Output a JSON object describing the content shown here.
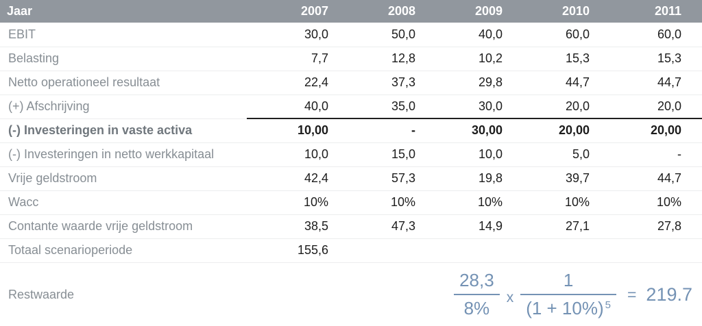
{
  "header": {
    "label": "Jaar",
    "years": [
      "2007",
      "2008",
      "2009",
      "2010",
      "2011"
    ]
  },
  "rows": [
    {
      "label": "EBIT",
      "values": [
        "30,0",
        "50,0",
        "40,0",
        "60,0",
        "60,0"
      ]
    },
    {
      "label": "Belasting",
      "values": [
        "7,7",
        "12,8",
        "10,2",
        "15,3",
        "15,3"
      ]
    },
    {
      "label": "Netto operationeel resultaat",
      "values": [
        "22,4",
        "37,3",
        "29,8",
        "44,7",
        "44,7"
      ]
    },
    {
      "label": "(+) Afschrijving",
      "values": [
        "40,0",
        "35,0",
        "30,0",
        "20,0",
        "20,0"
      ]
    },
    {
      "label": "(-) Investeringen in vaste activa",
      "values": [
        "10,00",
        "-",
        "30,00",
        "20,00",
        "20,00"
      ],
      "bold": true
    },
    {
      "label": "(-) Investeringen in netto werkkapitaal",
      "values": [
        "10,0",
        "15,0",
        "10,0",
        "5,0",
        "-"
      ]
    },
    {
      "label": "Vrije geldstroom",
      "values": [
        "42,4",
        "57,3",
        "19,8",
        "39,7",
        "44,7"
      ]
    },
    {
      "label": "Wacc",
      "values": [
        "10%",
        "10%",
        "10%",
        "10%",
        "10%"
      ]
    },
    {
      "label": "Contante waarde vrije geldstroom",
      "values": [
        "38,5",
        "47,3",
        "14,9",
        "27,1",
        "27,8"
      ]
    },
    {
      "label": "Totaal scenarioperiode",
      "values": [
        "155,6",
        "",
        "",
        "",
        ""
      ]
    }
  ],
  "restwaarde": {
    "label": "Restwaarde",
    "formula": {
      "numerator1": "28,3",
      "denominator1": "8%",
      "operator": "x",
      "numerator2": "1",
      "denominator2": "(1 + 10%)",
      "exponent": "5",
      "equals": "=",
      "result": "219.7"
    }
  },
  "colors": {
    "header_bg": "#91979E",
    "header_text": "#FFFFFF",
    "label_text": "#878E94",
    "value_text": "#1C1C1C",
    "bold_line": "#1F1F1F",
    "row_separator": "#ECEDEE",
    "formula_text": "#7492B4"
  }
}
